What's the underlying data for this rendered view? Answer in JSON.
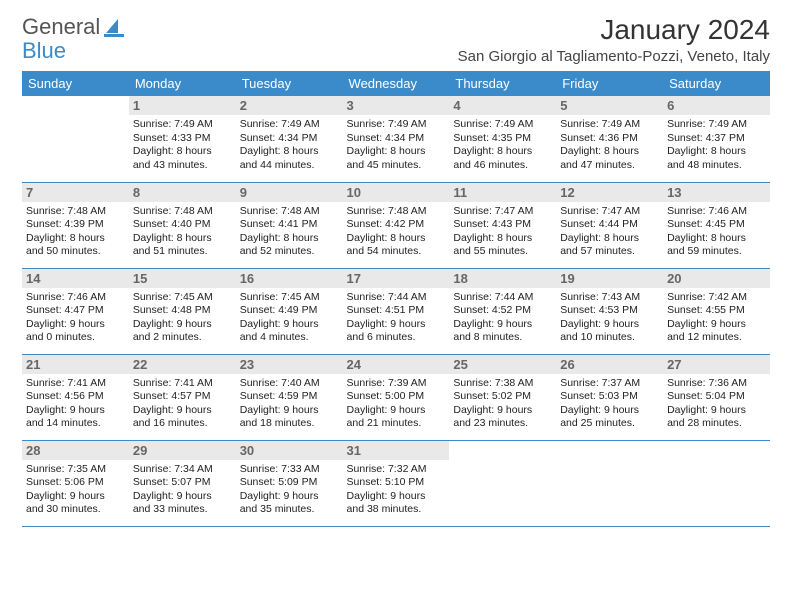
{
  "logo": {
    "text1": "General",
    "text2": "Blue"
  },
  "title": "January 2024",
  "location": "San Giorgio al Tagliamento-Pozzi, Veneto, Italy",
  "colors": {
    "header_bg": "#3b8bca",
    "header_fg": "#ffffff",
    "daynum_bg": "#e9e9e9",
    "daynum_fg": "#666666",
    "border": "#3b8bca",
    "logo_blue": "#3b8bca",
    "logo_gray": "#555555"
  },
  "weekdays": [
    "Sunday",
    "Monday",
    "Tuesday",
    "Wednesday",
    "Thursday",
    "Friday",
    "Saturday"
  ],
  "weeks": [
    [
      {
        "n": "",
        "sr": "",
        "ss": "",
        "dl": ""
      },
      {
        "n": "1",
        "sr": "Sunrise: 7:49 AM",
        "ss": "Sunset: 4:33 PM",
        "dl": "Daylight: 8 hours and 43 minutes."
      },
      {
        "n": "2",
        "sr": "Sunrise: 7:49 AM",
        "ss": "Sunset: 4:34 PM",
        "dl": "Daylight: 8 hours and 44 minutes."
      },
      {
        "n": "3",
        "sr": "Sunrise: 7:49 AM",
        "ss": "Sunset: 4:34 PM",
        "dl": "Daylight: 8 hours and 45 minutes."
      },
      {
        "n": "4",
        "sr": "Sunrise: 7:49 AM",
        "ss": "Sunset: 4:35 PM",
        "dl": "Daylight: 8 hours and 46 minutes."
      },
      {
        "n": "5",
        "sr": "Sunrise: 7:49 AM",
        "ss": "Sunset: 4:36 PM",
        "dl": "Daylight: 8 hours and 47 minutes."
      },
      {
        "n": "6",
        "sr": "Sunrise: 7:49 AM",
        "ss": "Sunset: 4:37 PM",
        "dl": "Daylight: 8 hours and 48 minutes."
      }
    ],
    [
      {
        "n": "7",
        "sr": "Sunrise: 7:48 AM",
        "ss": "Sunset: 4:39 PM",
        "dl": "Daylight: 8 hours and 50 minutes."
      },
      {
        "n": "8",
        "sr": "Sunrise: 7:48 AM",
        "ss": "Sunset: 4:40 PM",
        "dl": "Daylight: 8 hours and 51 minutes."
      },
      {
        "n": "9",
        "sr": "Sunrise: 7:48 AM",
        "ss": "Sunset: 4:41 PM",
        "dl": "Daylight: 8 hours and 52 minutes."
      },
      {
        "n": "10",
        "sr": "Sunrise: 7:48 AM",
        "ss": "Sunset: 4:42 PM",
        "dl": "Daylight: 8 hours and 54 minutes."
      },
      {
        "n": "11",
        "sr": "Sunrise: 7:47 AM",
        "ss": "Sunset: 4:43 PM",
        "dl": "Daylight: 8 hours and 55 minutes."
      },
      {
        "n": "12",
        "sr": "Sunrise: 7:47 AM",
        "ss": "Sunset: 4:44 PM",
        "dl": "Daylight: 8 hours and 57 minutes."
      },
      {
        "n": "13",
        "sr": "Sunrise: 7:46 AM",
        "ss": "Sunset: 4:45 PM",
        "dl": "Daylight: 8 hours and 59 minutes."
      }
    ],
    [
      {
        "n": "14",
        "sr": "Sunrise: 7:46 AM",
        "ss": "Sunset: 4:47 PM",
        "dl": "Daylight: 9 hours and 0 minutes."
      },
      {
        "n": "15",
        "sr": "Sunrise: 7:45 AM",
        "ss": "Sunset: 4:48 PM",
        "dl": "Daylight: 9 hours and 2 minutes."
      },
      {
        "n": "16",
        "sr": "Sunrise: 7:45 AM",
        "ss": "Sunset: 4:49 PM",
        "dl": "Daylight: 9 hours and 4 minutes."
      },
      {
        "n": "17",
        "sr": "Sunrise: 7:44 AM",
        "ss": "Sunset: 4:51 PM",
        "dl": "Daylight: 9 hours and 6 minutes."
      },
      {
        "n": "18",
        "sr": "Sunrise: 7:44 AM",
        "ss": "Sunset: 4:52 PM",
        "dl": "Daylight: 9 hours and 8 minutes."
      },
      {
        "n": "19",
        "sr": "Sunrise: 7:43 AM",
        "ss": "Sunset: 4:53 PM",
        "dl": "Daylight: 9 hours and 10 minutes."
      },
      {
        "n": "20",
        "sr": "Sunrise: 7:42 AM",
        "ss": "Sunset: 4:55 PM",
        "dl": "Daylight: 9 hours and 12 minutes."
      }
    ],
    [
      {
        "n": "21",
        "sr": "Sunrise: 7:41 AM",
        "ss": "Sunset: 4:56 PM",
        "dl": "Daylight: 9 hours and 14 minutes."
      },
      {
        "n": "22",
        "sr": "Sunrise: 7:41 AM",
        "ss": "Sunset: 4:57 PM",
        "dl": "Daylight: 9 hours and 16 minutes."
      },
      {
        "n": "23",
        "sr": "Sunrise: 7:40 AM",
        "ss": "Sunset: 4:59 PM",
        "dl": "Daylight: 9 hours and 18 minutes."
      },
      {
        "n": "24",
        "sr": "Sunrise: 7:39 AM",
        "ss": "Sunset: 5:00 PM",
        "dl": "Daylight: 9 hours and 21 minutes."
      },
      {
        "n": "25",
        "sr": "Sunrise: 7:38 AM",
        "ss": "Sunset: 5:02 PM",
        "dl": "Daylight: 9 hours and 23 minutes."
      },
      {
        "n": "26",
        "sr": "Sunrise: 7:37 AM",
        "ss": "Sunset: 5:03 PM",
        "dl": "Daylight: 9 hours and 25 minutes."
      },
      {
        "n": "27",
        "sr": "Sunrise: 7:36 AM",
        "ss": "Sunset: 5:04 PM",
        "dl": "Daylight: 9 hours and 28 minutes."
      }
    ],
    [
      {
        "n": "28",
        "sr": "Sunrise: 7:35 AM",
        "ss": "Sunset: 5:06 PM",
        "dl": "Daylight: 9 hours and 30 minutes."
      },
      {
        "n": "29",
        "sr": "Sunrise: 7:34 AM",
        "ss": "Sunset: 5:07 PM",
        "dl": "Daylight: 9 hours and 33 minutes."
      },
      {
        "n": "30",
        "sr": "Sunrise: 7:33 AM",
        "ss": "Sunset: 5:09 PM",
        "dl": "Daylight: 9 hours and 35 minutes."
      },
      {
        "n": "31",
        "sr": "Sunrise: 7:32 AM",
        "ss": "Sunset: 5:10 PM",
        "dl": "Daylight: 9 hours and 38 minutes."
      },
      {
        "n": "",
        "sr": "",
        "ss": "",
        "dl": ""
      },
      {
        "n": "",
        "sr": "",
        "ss": "",
        "dl": ""
      },
      {
        "n": "",
        "sr": "",
        "ss": "",
        "dl": ""
      }
    ]
  ]
}
